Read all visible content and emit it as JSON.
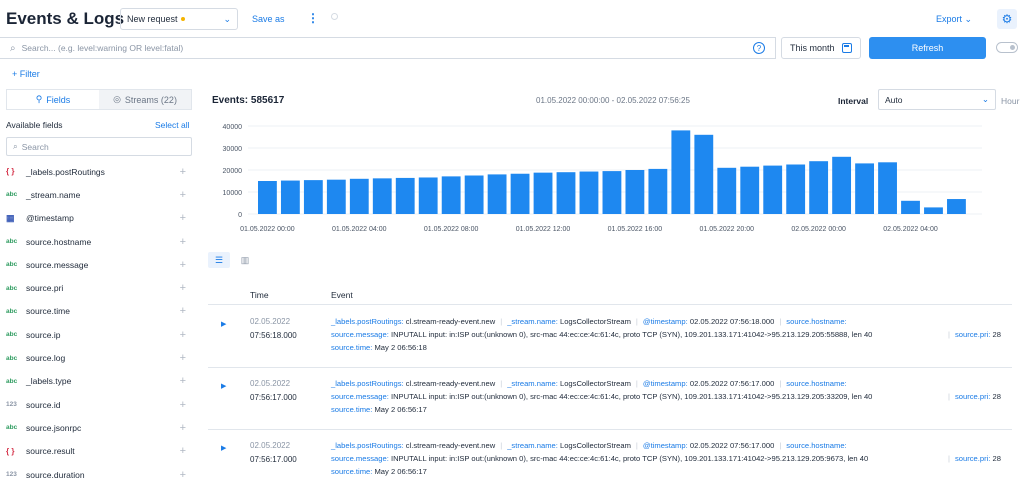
{
  "header": {
    "title": "Events & Logs",
    "request_select": "New request",
    "save_as": "Save as",
    "export": "Export"
  },
  "search": {
    "placeholder": "Search... (e.g. level:warning OR level:fatal)",
    "period": "This month",
    "refresh": "Refresh"
  },
  "filter_label": "+ Filter",
  "sidebar": {
    "tab_fields": "Fields",
    "tab_streams": "Streams (22)",
    "available": "Available fields",
    "select_all": "Select all",
    "search_placeholder": "Search",
    "fields": [
      {
        "type": "{ }",
        "kind": "obj",
        "name": "_labels.postRoutings"
      },
      {
        "type": "abc",
        "kind": "str",
        "name": "_stream.name"
      },
      {
        "type": "▦",
        "kind": "date",
        "name": "@timestamp"
      },
      {
        "type": "abc",
        "kind": "str",
        "name": "source.hostname"
      },
      {
        "type": "abc",
        "kind": "str",
        "name": "source.message"
      },
      {
        "type": "abc",
        "kind": "str",
        "name": "source.pri"
      },
      {
        "type": "abc",
        "kind": "str",
        "name": "source.time"
      },
      {
        "type": "abc",
        "kind": "str",
        "name": "source.ip"
      },
      {
        "type": "abc",
        "kind": "str",
        "name": "source.log"
      },
      {
        "type": "abc",
        "kind": "str",
        "name": "_labels.type"
      },
      {
        "type": "123",
        "kind": "num",
        "name": "source.id"
      },
      {
        "type": "abc",
        "kind": "str",
        "name": "source.jsonrpc"
      },
      {
        "type": "{ }",
        "kind": "obj",
        "name": "source.result"
      },
      {
        "type": "123",
        "kind": "num",
        "name": "source.duration"
      }
    ]
  },
  "summary": {
    "events": "Events: 585617",
    "range": "01.05.2022 00:00:00 - 02.05.2022 07:56:25",
    "interval_label": "Interval",
    "interval_value": "Auto",
    "hour_label": "Hour"
  },
  "chart_data": {
    "type": "bar",
    "y_ticks": [
      "40000",
      "30000",
      "20000",
      "10000",
      "0"
    ],
    "ylim": [
      0,
      40000
    ],
    "x_tick_labels": [
      "01.05.2022 00:00",
      "01.05.2022 04:00",
      "01.05.2022 08:00",
      "01.05.2022 12:00",
      "01.05.2022 16:00",
      "01.05.2022 20:00",
      "02.05.2022 00:00",
      "02.05.2022 04:00"
    ],
    "values": [
      15000,
      15200,
      15400,
      15600,
      16000,
      16200,
      16400,
      16600,
      17100,
      17500,
      18000,
      18300,
      18800,
      19000,
      19300,
      19500,
      20000,
      20500,
      38000,
      36000,
      21000,
      21500,
      22000,
      22500,
      24000,
      26000,
      23000,
      23500,
      6000,
      3000,
      6800
    ],
    "grid": true,
    "color": "#1e88f0"
  },
  "table": {
    "col_time": "Time",
    "col_event": "Event",
    "rows": [
      {
        "date": "02.05.2022",
        "time": "07:56:18.000",
        "postRoutings": "cl.stream-ready-event.new",
        "stream": "LogsCollectorStream",
        "timestamp": "02.05.2022 07:56:18.000",
        "message": "INPUTALL input: in:ISP out:(unknown 0), src-mac 44:ec:ce:4c:61:4c, proto TCP (SYN), 109.201.133.171:41042->95.213.129.205:55888, len 40",
        "pri": "28",
        "stime": "May 2 06:56:18"
      },
      {
        "date": "02.05.2022",
        "time": "07:56:17.000",
        "postRoutings": "cl.stream-ready-event.new",
        "stream": "LogsCollectorStream",
        "timestamp": "02.05.2022 07:56:17.000",
        "message": "INPUTALL input: in:ISP out:(unknown 0), src-mac 44:ec:ce:4c:61:4c, proto TCP (SYN), 109.201.133.171:41042->95.213.129.205:33209, len 40",
        "pri": "28",
        "stime": "May 2 06:56:17"
      },
      {
        "date": "02.05.2022",
        "time": "07:56:17.000",
        "postRoutings": "cl.stream-ready-event.new",
        "stream": "LogsCollectorStream",
        "timestamp": "02.05.2022 07:56:17.000",
        "message": "INPUTALL input: in:ISP out:(unknown 0), src-mac 44:ec:ce:4c:61:4c, proto TCP (SYN), 109.201.133.171:41042->95.213.129.205:9673, len 40",
        "pri": "28",
        "stime": "May 2 06:56:17"
      }
    ],
    "keys": {
      "postRoutings": "_labels.postRoutings:",
      "stream": "_stream.name:",
      "timestamp": "@timestamp:",
      "hostname": "source.hostname:",
      "message": "source.message:",
      "pri": "source.pri:",
      "stime": "source.time:"
    }
  }
}
